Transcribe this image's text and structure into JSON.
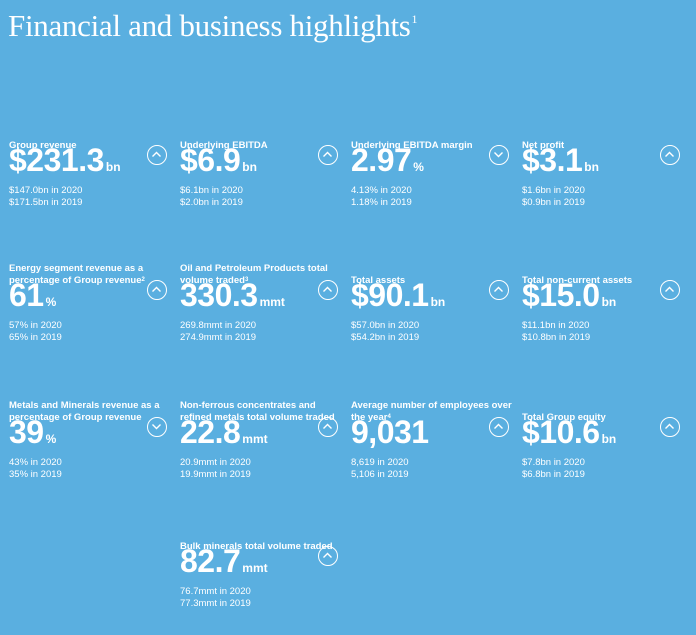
{
  "header": {
    "title": "Financial and business highlights",
    "footnote": "1"
  },
  "metrics": [
    {
      "label": "Group revenue",
      "note": "",
      "value": "$231.3",
      "unit": "bn",
      "direction": "up",
      "prev_2020": "$147.0bn in 2020",
      "prev_2019": "$171.5bn in 2019"
    },
    {
      "label": "Underlying EBITDA",
      "note": "",
      "value": "$6.9",
      "unit": "bn",
      "direction": "up",
      "prev_2020": "$6.1bn in 2020",
      "prev_2019": "$2.0bn in 2019"
    },
    {
      "label": "Underlying EBITDA margin",
      "note": "",
      "value": "2.97",
      "unit": "%",
      "direction": "down",
      "prev_2020": "4.13% in 2020",
      "prev_2019": "1.18% in 2019"
    },
    {
      "label": "Net profit",
      "note": "",
      "value": "$3.1",
      "unit": "bn",
      "direction": "up",
      "prev_2020": "$1.6bn in 2020",
      "prev_2019": "$0.9bn in 2019"
    },
    {
      "label": "Energy segment revenue as a percentage of Group revenue",
      "note": "2",
      "value": "61",
      "unit": "%",
      "direction": "up",
      "prev_2020": "57% in 2020",
      "prev_2019": "65% in 2019"
    },
    {
      "label": "Oil and Petroleum Products total volume traded",
      "note": "3",
      "value": "330.3",
      "unit": "mmt",
      "direction": "up",
      "prev_2020": "269.8mmt in 2020",
      "prev_2019": "274.9mmt in 2019"
    },
    {
      "label": "Total assets",
      "note": "",
      "value": "$90.1",
      "unit": "bn",
      "direction": "up",
      "prev_2020": "$57.0bn in 2020",
      "prev_2019": "$54.2bn in 2019"
    },
    {
      "label": "Total non-current assets",
      "note": "",
      "value": "$15.0",
      "unit": "bn",
      "direction": "up",
      "prev_2020": "$11.1bn in 2020",
      "prev_2019": "$10.8bn in 2019"
    },
    {
      "label": "Metals and Minerals revenue as a percentage of Group revenue",
      "note": "",
      "value": "39",
      "unit": "%",
      "direction": "down",
      "prev_2020": "43% in 2020",
      "prev_2019": "35% in 2019"
    },
    {
      "label": "Non-ferrous concentrates and refined metals total volume traded",
      "note": "",
      "value": "22.8",
      "unit": "mmt",
      "direction": "up",
      "prev_2020": "20.9mmt in 2020",
      "prev_2019": "19.9mmt in 2019"
    },
    {
      "label": "Average number of employees over the year",
      "note": "4",
      "value": "9,031",
      "unit": "",
      "direction": "up",
      "prev_2020": "8,619 in 2020",
      "prev_2019": "5,106 in 2019"
    },
    {
      "label": "Total Group equity",
      "note": "",
      "value": "$10.6",
      "unit": "bn",
      "direction": "up",
      "prev_2020": "$7.8bn in 2020",
      "prev_2019": "$6.8bn in 2019"
    },
    {
      "label": "Bulk minerals total volume traded",
      "note": "",
      "value": "82.7",
      "unit": "mmt",
      "direction": "up",
      "prev_2020": "76.7mmt in 2020",
      "prev_2019": "77.3mmt in 2019"
    }
  ]
}
